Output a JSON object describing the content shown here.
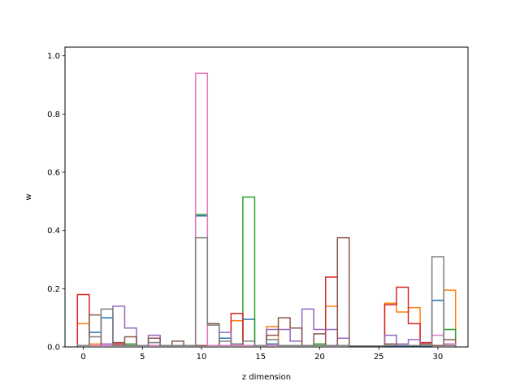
{
  "chart_data": {
    "type": "step",
    "xlabel": "z dimension",
    "ylabel": "w",
    "xlim": [
      -1.55,
      32.55
    ],
    "ylim": [
      0,
      1.03
    ],
    "grid": false,
    "x_ticks": [
      0,
      5,
      10,
      15,
      20,
      25,
      30
    ],
    "y_ticks": [
      0.0,
      0.2,
      0.4,
      0.6,
      0.8,
      1.0
    ],
    "x_tick_labels": [
      "0",
      "5",
      "10",
      "15",
      "20",
      "25",
      "30"
    ],
    "y_tick_labels": [
      "0.0",
      "0.2",
      "0.4",
      "0.6",
      "0.8",
      "1.0"
    ],
    "series": [
      {
        "color": "#1f77b4",
        "values": [
          0.005,
          0.05,
          0.1,
          0.005,
          0.005,
          0.005,
          0.005,
          0.005,
          0.005,
          0.005,
          0.45,
          0.005,
          0.03,
          0.01,
          0.095,
          0.005,
          0.01,
          0.005,
          0.005,
          0.005,
          0.005,
          0.005,
          0.005,
          0.003,
          0.003,
          0.003,
          0.003,
          0.003,
          0.003,
          0.003,
          0.16,
          0.005
        ]
      },
      {
        "color": "#ff7f0e",
        "values": [
          0.08,
          0.01,
          0.005,
          0.005,
          0.005,
          0.005,
          0.005,
          0.005,
          0.005,
          0.005,
          0.005,
          0.005,
          0.005,
          0.09,
          0.005,
          0.005,
          0.07,
          0.005,
          0.005,
          0.005,
          0.005,
          0.14,
          0.005,
          0.003,
          0.003,
          0.003,
          0.15,
          0.12,
          0.135,
          0.005,
          0.005,
          0.195
        ]
      },
      {
        "color": "#2ca02c",
        "values": [
          0.005,
          0.005,
          0.005,
          0.005,
          0.01,
          0.005,
          0.005,
          0.005,
          0.005,
          0.005,
          0.455,
          0.005,
          0.005,
          0.005,
          0.515,
          0.005,
          0.005,
          0.005,
          0.005,
          0.005,
          0.01,
          0.005,
          0.005,
          0.003,
          0.003,
          0.003,
          0.005,
          0.005,
          0.005,
          0.005,
          0.005,
          0.06
        ]
      },
      {
        "color": "#d62728",
        "values": [
          0.18,
          0.005,
          0.005,
          0.01,
          0.005,
          0.005,
          0.005,
          0.005,
          0.005,
          0.005,
          0.005,
          0.005,
          0.005,
          0.115,
          0.005,
          0.005,
          0.005,
          0.005,
          0.005,
          0.005,
          0.005,
          0.24,
          0.005,
          0.003,
          0.003,
          0.003,
          0.145,
          0.205,
          0.08,
          0.015,
          0.005,
          0.005
        ]
      },
      {
        "color": "#9467bd",
        "values": [
          0.005,
          0.005,
          0.01,
          0.14,
          0.065,
          0.005,
          0.04,
          0.005,
          0.005,
          0.005,
          0.005,
          0.005,
          0.05,
          0.005,
          0.005,
          0.005,
          0.06,
          0.06,
          0.02,
          0.13,
          0.06,
          0.06,
          0.03,
          0.003,
          0.003,
          0.003,
          0.04,
          0.01,
          0.025,
          0.005,
          0.005,
          0.01
        ]
      },
      {
        "color": "#8c564b",
        "values": [
          0.005,
          0.11,
          0.005,
          0.015,
          0.035,
          0.005,
          0.03,
          0.005,
          0.02,
          0.005,
          0.005,
          0.08,
          0.005,
          0.005,
          0.005,
          0.005,
          0.04,
          0.1,
          0.065,
          0.005,
          0.045,
          0.005,
          0.375,
          0.003,
          0.003,
          0.003,
          0.01,
          0.005,
          0.005,
          0.01,
          0.005,
          0.025
        ]
      },
      {
        "color": "#e377c2",
        "values": [
          0.005,
          0.005,
          0.005,
          0.005,
          0.005,
          0.005,
          0.005,
          0.005,
          0.005,
          0.005,
          0.94,
          0.005,
          0.005,
          0.005,
          0.005,
          0.005,
          0.005,
          0.005,
          0.005,
          0.005,
          0.005,
          0.005,
          0.005,
          0.003,
          0.003,
          0.003,
          0.005,
          0.005,
          0.005,
          0.005,
          0.04,
          0.01
        ]
      },
      {
        "color": "#7f7f7f",
        "values": [
          0.005,
          0.035,
          0.13,
          0.005,
          0.005,
          0.005,
          0.015,
          0.005,
          0.005,
          0.005,
          0.375,
          0.075,
          0.02,
          0.01,
          0.02,
          0.005,
          0.025,
          0.005,
          0.005,
          0.005,
          0.005,
          0.005,
          0.005,
          0.003,
          0.003,
          0.003,
          0.005,
          0.005,
          0.005,
          0.005,
          0.31,
          0.005
        ]
      }
    ]
  }
}
